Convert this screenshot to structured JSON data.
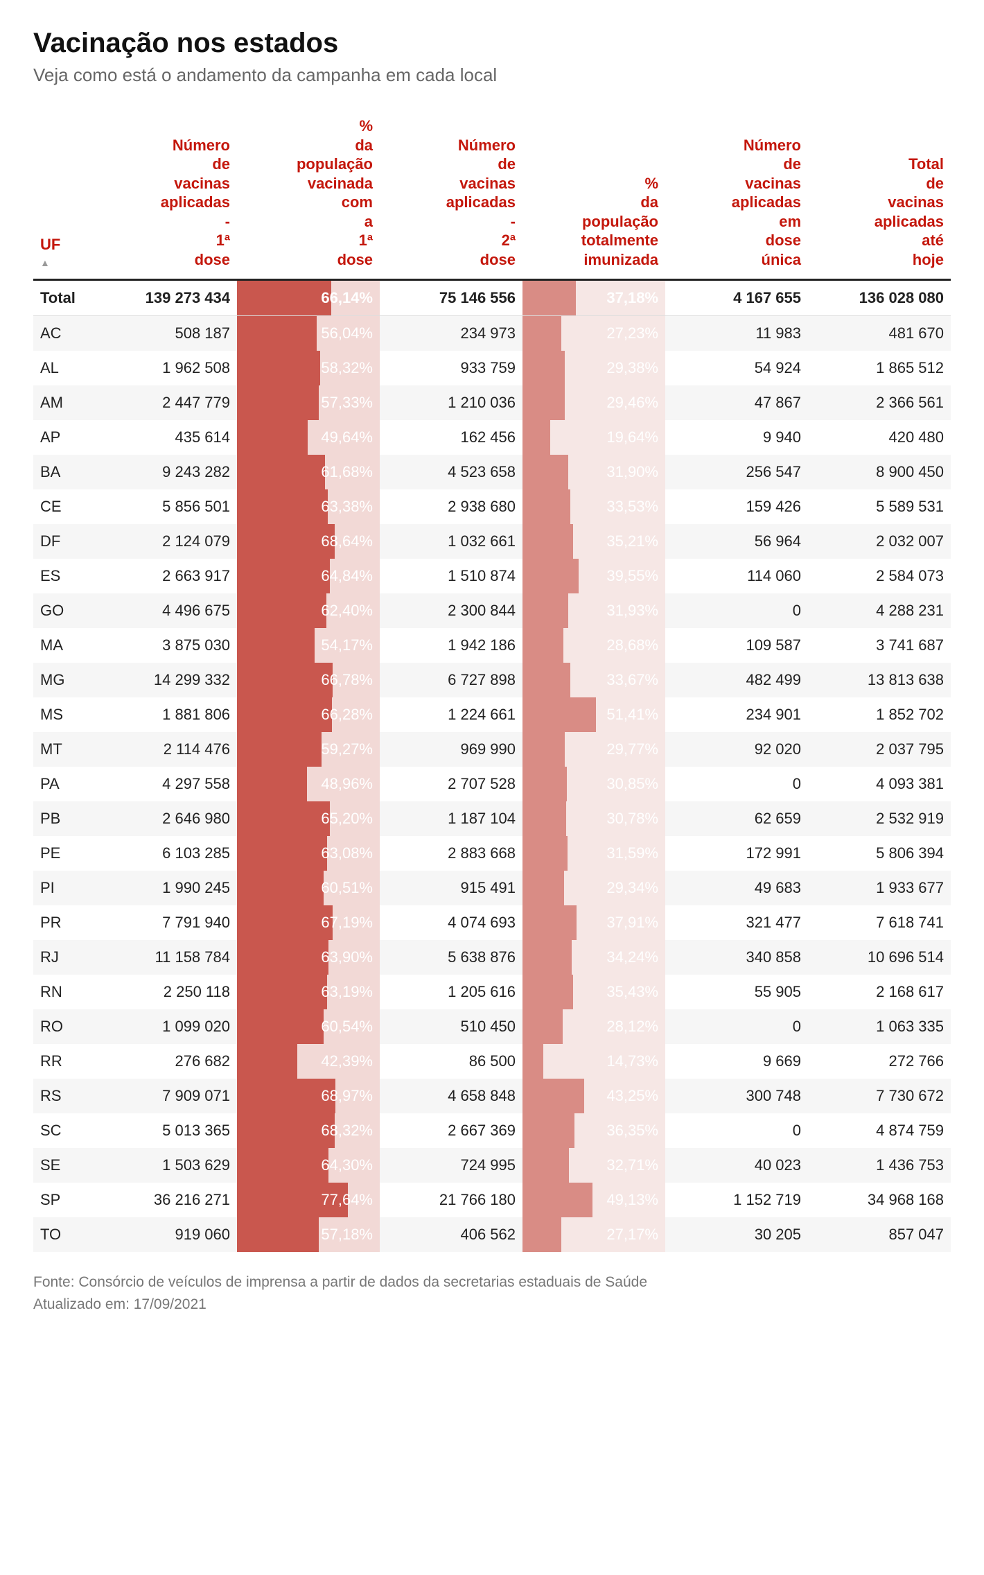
{
  "title": "Vacinação nos estados",
  "subtitle": "Veja como está o andamento da campanha em cada local",
  "footer_source": "Fonte: Consórcio de veículos de imprensa a partir de dados da secretarias estaduais de Saúde",
  "footer_updated": "Atualizado em: 17/09/2021",
  "colors": {
    "header_red": "#c4170c",
    "pct1_bg": "#f2d9d6",
    "pct1_bar": "#c9574e",
    "pct2_bg": "#f6e7e5",
    "pct2_bar": "#d98c85",
    "total_pct_text": "#ffffff",
    "row_alt": "#f6f6f6",
    "border": "#222222",
    "text": "#222222",
    "muted": "#777777"
  },
  "columns": [
    {
      "label": "UF",
      "is_uf": true,
      "sort_indicator": "▲"
    },
    {
      "label": "Número de vacinas aplicadas - 1ª dose"
    },
    {
      "label": "% da população vacinada com a 1ª dose",
      "pct_col": 1
    },
    {
      "label": "Número de vacinas aplicadas - 2ª dose"
    },
    {
      "label": "% da população totalmente imunizada",
      "pct_col": 2
    },
    {
      "label": "Número de vacinas aplicadas em dose única"
    },
    {
      "label": "Total de vacinas aplicadas até hoje"
    }
  ],
  "pct_scale": {
    "max_pct1": 100,
    "max_pct2": 100
  },
  "total_row": {
    "uf": "Total",
    "dose1": "139 273 434",
    "pct1": "66,14%",
    "pct1_val": 66.14,
    "dose2": "75 146 556",
    "pct2": "37,18%",
    "pct2_val": 37.18,
    "unica": "4 167 655",
    "total": "136 028 080"
  },
  "rows": [
    {
      "uf": "AC",
      "dose1": "508 187",
      "pct1": "56,04%",
      "pct1_val": 56.04,
      "dose2": "234 973",
      "pct2": "27,23%",
      "pct2_val": 27.23,
      "unica": "11 983",
      "total": "481 670"
    },
    {
      "uf": "AL",
      "dose1": "1 962 508",
      "pct1": "58,32%",
      "pct1_val": 58.32,
      "dose2": "933 759",
      "pct2": "29,38%",
      "pct2_val": 29.38,
      "unica": "54 924",
      "total": "1 865 512"
    },
    {
      "uf": "AM",
      "dose1": "2 447 779",
      "pct1": "57,33%",
      "pct1_val": 57.33,
      "dose2": "1 210 036",
      "pct2": "29,46%",
      "pct2_val": 29.46,
      "unica": "47 867",
      "total": "2 366 561"
    },
    {
      "uf": "AP",
      "dose1": "435 614",
      "pct1": "49,64%",
      "pct1_val": 49.64,
      "dose2": "162 456",
      "pct2": "19,64%",
      "pct2_val": 19.64,
      "unica": "9 940",
      "total": "420 480"
    },
    {
      "uf": "BA",
      "dose1": "9 243 282",
      "pct1": "61,68%",
      "pct1_val": 61.68,
      "dose2": "4 523 658",
      "pct2": "31,90%",
      "pct2_val": 31.9,
      "unica": "256 547",
      "total": "8 900 450"
    },
    {
      "uf": "CE",
      "dose1": "5 856 501",
      "pct1": "63,38%",
      "pct1_val": 63.38,
      "dose2": "2 938 680",
      "pct2": "33,53%",
      "pct2_val": 33.53,
      "unica": "159 426",
      "total": "5 589 531"
    },
    {
      "uf": "DF",
      "dose1": "2 124 079",
      "pct1": "68,64%",
      "pct1_val": 68.64,
      "dose2": "1 032 661",
      "pct2": "35,21%",
      "pct2_val": 35.21,
      "unica": "56 964",
      "total": "2 032 007"
    },
    {
      "uf": "ES",
      "dose1": "2 663 917",
      "pct1": "64,84%",
      "pct1_val": 64.84,
      "dose2": "1 510 874",
      "pct2": "39,55%",
      "pct2_val": 39.55,
      "unica": "114 060",
      "total": "2 584 073"
    },
    {
      "uf": "GO",
      "dose1": "4 496 675",
      "pct1": "62,40%",
      "pct1_val": 62.4,
      "dose2": "2 300 844",
      "pct2": "31,93%",
      "pct2_val": 31.93,
      "unica": "0",
      "total": "4 288 231"
    },
    {
      "uf": "MA",
      "dose1": "3 875 030",
      "pct1": "54,17%",
      "pct1_val": 54.17,
      "dose2": "1 942 186",
      "pct2": "28,68%",
      "pct2_val": 28.68,
      "unica": "109 587",
      "total": "3 741 687"
    },
    {
      "uf": "MG",
      "dose1": "14 299 332",
      "pct1": "66,78%",
      "pct1_val": 66.78,
      "dose2": "6 727 898",
      "pct2": "33,67%",
      "pct2_val": 33.67,
      "unica": "482 499",
      "total": "13 813 638"
    },
    {
      "uf": "MS",
      "dose1": "1 881 806",
      "pct1": "66,28%",
      "pct1_val": 66.28,
      "dose2": "1 224 661",
      "pct2": "51,41%",
      "pct2_val": 51.41,
      "unica": "234 901",
      "total": "1 852 702"
    },
    {
      "uf": "MT",
      "dose1": "2 114 476",
      "pct1": "59,27%",
      "pct1_val": 59.27,
      "dose2": "969 990",
      "pct2": "29,77%",
      "pct2_val": 29.77,
      "unica": "92 020",
      "total": "2 037 795"
    },
    {
      "uf": "PA",
      "dose1": "4 297 558",
      "pct1": "48,96%",
      "pct1_val": 48.96,
      "dose2": "2 707 528",
      "pct2": "30,85%",
      "pct2_val": 30.85,
      "unica": "0",
      "total": "4 093 381"
    },
    {
      "uf": "PB",
      "dose1": "2 646 980",
      "pct1": "65,20%",
      "pct1_val": 65.2,
      "dose2": "1 187 104",
      "pct2": "30,78%",
      "pct2_val": 30.78,
      "unica": "62 659",
      "total": "2 532 919"
    },
    {
      "uf": "PE",
      "dose1": "6 103 285",
      "pct1": "63,08%",
      "pct1_val": 63.08,
      "dose2": "2 883 668",
      "pct2": "31,59%",
      "pct2_val": 31.59,
      "unica": "172 991",
      "total": "5 806 394"
    },
    {
      "uf": "PI",
      "dose1": "1 990 245",
      "pct1": "60,51%",
      "pct1_val": 60.51,
      "dose2": "915 491",
      "pct2": "29,34%",
      "pct2_val": 29.34,
      "unica": "49 683",
      "total": "1 933 677"
    },
    {
      "uf": "PR",
      "dose1": "7 791 940",
      "pct1": "67,19%",
      "pct1_val": 67.19,
      "dose2": "4 074 693",
      "pct2": "37,91%",
      "pct2_val": 37.91,
      "unica": "321 477",
      "total": "7 618 741"
    },
    {
      "uf": "RJ",
      "dose1": "11 158 784",
      "pct1": "63,90%",
      "pct1_val": 63.9,
      "dose2": "5 638 876",
      "pct2": "34,24%",
      "pct2_val": 34.24,
      "unica": "340 858",
      "total": "10 696 514"
    },
    {
      "uf": "RN",
      "dose1": "2 250 118",
      "pct1": "63,19%",
      "pct1_val": 63.19,
      "dose2": "1 205 616",
      "pct2": "35,43%",
      "pct2_val": 35.43,
      "unica": "55 905",
      "total": "2 168 617"
    },
    {
      "uf": "RO",
      "dose1": "1 099 020",
      "pct1": "60,54%",
      "pct1_val": 60.54,
      "dose2": "510 450",
      "pct2": "28,12%",
      "pct2_val": 28.12,
      "unica": "0",
      "total": "1 063 335"
    },
    {
      "uf": "RR",
      "dose1": "276 682",
      "pct1": "42,39%",
      "pct1_val": 42.39,
      "dose2": "86 500",
      "pct2": "14,73%",
      "pct2_val": 14.73,
      "unica": "9 669",
      "total": "272 766"
    },
    {
      "uf": "RS",
      "dose1": "7 909 071",
      "pct1": "68,97%",
      "pct1_val": 68.97,
      "dose2": "4 658 848",
      "pct2": "43,25%",
      "pct2_val": 43.25,
      "unica": "300 748",
      "total": "7 730 672"
    },
    {
      "uf": "SC",
      "dose1": "5 013 365",
      "pct1": "68,32%",
      "pct1_val": 68.32,
      "dose2": "2 667 369",
      "pct2": "36,35%",
      "pct2_val": 36.35,
      "unica": "0",
      "total": "4 874 759"
    },
    {
      "uf": "SE",
      "dose1": "1 503 629",
      "pct1": "64,30%",
      "pct1_val": 64.3,
      "dose2": "724 995",
      "pct2": "32,71%",
      "pct2_val": 32.71,
      "unica": "40 023",
      "total": "1 436 753"
    },
    {
      "uf": "SP",
      "dose1": "36 216 271",
      "pct1": "77,64%",
      "pct1_val": 77.64,
      "dose2": "21 766 180",
      "pct2": "49,13%",
      "pct2_val": 49.13,
      "unica": "1 152 719",
      "total": "34 968 168"
    },
    {
      "uf": "TO",
      "dose1": "919 060",
      "pct1": "57,18%",
      "pct1_val": 57.18,
      "dose2": "406 562",
      "pct2": "27,17%",
      "pct2_val": 27.17,
      "unica": "30 205",
      "total": "857 047"
    }
  ]
}
